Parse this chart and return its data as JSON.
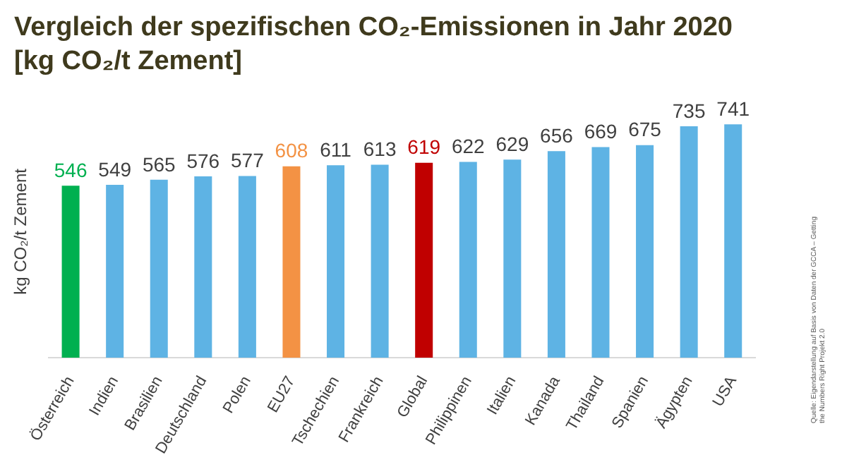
{
  "chart_data": {
    "type": "bar",
    "title": "Vergleich der spezifischen CO₂-Emissionen in Jahr 2020\n[kg CO₂/t Zement]",
    "ylabel": "kg CO₂/t Zement",
    "categories": [
      "Österreich",
      "Indien",
      "Brasilien",
      "Deutschland",
      "Polen",
      "EU27",
      "Tschechien",
      "Frankreich",
      "Global",
      "Philippinen",
      "Italien",
      "Kanada",
      "Thailand",
      "Spanien",
      "Ägypten",
      "USA"
    ],
    "values": [
      546,
      549,
      565,
      576,
      577,
      608,
      611,
      613,
      619,
      622,
      629,
      656,
      669,
      675,
      735,
      741
    ],
    "colors": [
      "#00b050",
      "#5eb3e4",
      "#5eb3e4",
      "#5eb3e4",
      "#5eb3e4",
      "#f39244",
      "#5eb3e4",
      "#5eb3e4",
      "#c00000",
      "#5eb3e4",
      "#5eb3e4",
      "#5eb3e4",
      "#5eb3e4",
      "#5eb3e4",
      "#5eb3e4",
      "#5eb3e4"
    ],
    "data_labels": true,
    "tick_labels": "x",
    "grid": false,
    "legend": false,
    "annotations": [
      "Quelle: Eigendarstellung auf Basis von Daten der GCCA – Getting the Numbers Right Projekt 2.0"
    ]
  }
}
